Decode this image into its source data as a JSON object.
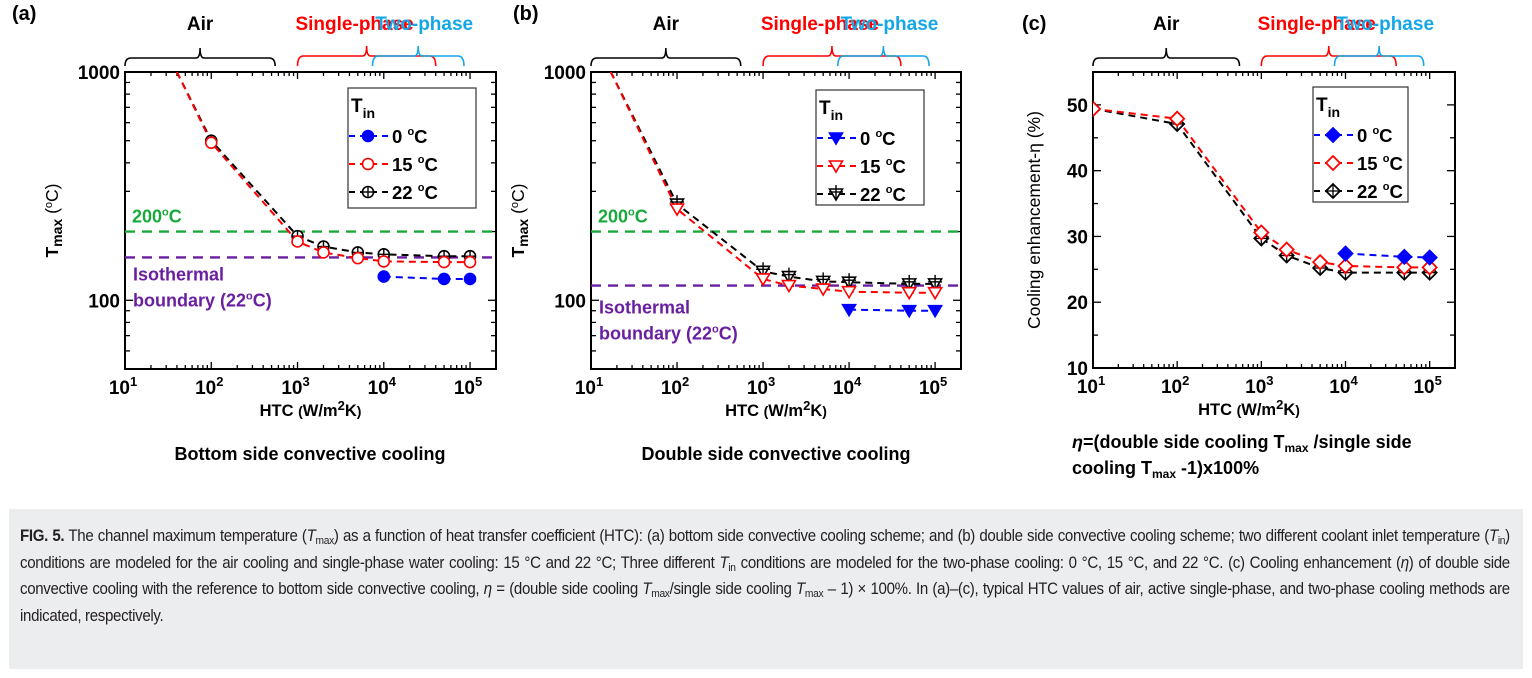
{
  "figure_label": "FIG. 5.",
  "caption": {
    "label": "FIG. 5.",
    "segments": [
      {
        "t": " The channel maximum temperature ("
      },
      {
        "t": "T",
        "i": true
      },
      {
        "t": "max",
        "sub": true
      },
      {
        "t": ") as a function of heat transfer coefficient (HTC): (a) bottom side convective cooling scheme; and (b) double side convective cooling scheme; two different coolant inlet temperature ("
      },
      {
        "t": "T",
        "i": true
      },
      {
        "t": "in",
        "sub": true
      },
      {
        "t": ") conditions are modeled for the air cooling and single-phase water cooling: 15 °C and 22 °C; Three different "
      },
      {
        "t": "T",
        "i": true
      },
      {
        "t": "in",
        "sub": true
      },
      {
        "t": " conditions are modeled for the two-phase cooling: 0 °C, 15 °C, and 22 °C. (c) Cooling enhancement ("
      },
      {
        "t": "η",
        "i": true
      },
      {
        "t": ") of double side convective cooling with the reference to bottom side convective cooling, "
      },
      {
        "t": "η",
        "i": true
      },
      {
        "t": " = (double side cooling "
      },
      {
        "t": "T",
        "i": true
      },
      {
        "t": "max",
        "sub": true
      },
      {
        "t": "/single side cooling "
      },
      {
        "t": "T",
        "i": true
      },
      {
        "t": "max",
        "sub": true
      },
      {
        "t": " – 1) × 100%. In (a)–(c), typical HTC values of air, active single-phase, and two-phase cooling methods are indicated, respectively."
      }
    ]
  },
  "colors": {
    "t0": "#0000ff",
    "t15": "#ff0000",
    "t22": "#000000",
    "limit200": "#1aaa3c",
    "isothermal": "#6a1fa0",
    "air": "#000000",
    "single_phase": "#ff0000",
    "two_phase": "#13a7e8"
  },
  "chart_data": [
    {
      "panel": "(a)",
      "type": "line",
      "subtitle": "Bottom side convective cooling",
      "xlabel": "HTC (W/m²K)",
      "ylabel": "Tmax (°C)",
      "xscale": "log",
      "yscale": "log",
      "xlim": [
        10,
        200000
      ],
      "ylim": [
        50,
        1000
      ],
      "xticks": [
        {
          "v": 10,
          "base": "10",
          "exp": "1"
        },
        {
          "v": 100,
          "base": "10",
          "exp": "2"
        },
        {
          "v": 1000,
          "base": "10",
          "exp": "3"
        },
        {
          "v": 10000,
          "base": "10",
          "exp": "4"
        },
        {
          "v": 100000,
          "base": "10",
          "exp": "5"
        }
      ],
      "yticks": [
        {
          "v": 100,
          "label": "100"
        },
        {
          "v": 1000,
          "label": "1000"
        }
      ],
      "legend": {
        "title": "T",
        "title_sub": "in",
        "placement": "top-right"
      },
      "series": [
        {
          "name": "0 °C",
          "key": "t0",
          "marker": "circle-filled",
          "x": [
            10000,
            50000,
            100000
          ],
          "y": [
            127,
            124,
            124
          ]
        },
        {
          "name": "15 °C",
          "key": "t15",
          "marker": "circle-open",
          "x": [
            40,
            100,
            1000,
            2000,
            5000,
            10000,
            50000,
            100000
          ],
          "y": [
            1000,
            490,
            181,
            162,
            153,
            148,
            147,
            147
          ]
        },
        {
          "name": "22 °C",
          "key": "t22",
          "marker": "circle-plus",
          "x": [
            40,
            100,
            1000,
            2000,
            5000,
            10000,
            50000,
            100000
          ],
          "y": [
            1000,
            500,
            191,
            172,
            162,
            159,
            156,
            156
          ]
        }
      ],
      "hlines": [
        {
          "label": "200ºC",
          "value": 200,
          "key": "limit200"
        },
        {
          "label": "Isothermal",
          "label2": "boundary (22ºC)",
          "value": 154,
          "key": "isothermal"
        }
      ],
      "ranges": [
        {
          "label": "Air",
          "key": "air",
          "from": 10,
          "to": 550
        },
        {
          "label": "Single-phase",
          "key": "single_phase",
          "from": 1000,
          "to": 40000
        },
        {
          "label": "Two-phase",
          "key": "two_phase",
          "from": 7400,
          "to": 85000
        }
      ]
    },
    {
      "panel": "(b)",
      "type": "line",
      "subtitle": "Double side convective cooling",
      "xlabel": "HTC (W/m²K)",
      "ylabel": "Tmax (°C)",
      "xscale": "log",
      "yscale": "log",
      "xlim": [
        10,
        200000
      ],
      "ylim": [
        50,
        1000
      ],
      "xticks": [
        {
          "v": 10,
          "base": "10",
          "exp": "1"
        },
        {
          "v": 100,
          "base": "10",
          "exp": "2"
        },
        {
          "v": 1000,
          "base": "10",
          "exp": "3"
        },
        {
          "v": 10000,
          "base": "10",
          "exp": "4"
        },
        {
          "v": 100000,
          "base": "10",
          "exp": "5"
        }
      ],
      "yticks": [
        {
          "v": 100,
          "label": "100"
        },
        {
          "v": 1000,
          "label": "1000"
        }
      ],
      "legend": {
        "title": "T",
        "title_sub": "in",
        "placement": "top-right"
      },
      "series": [
        {
          "name": "0 °C",
          "key": "t0",
          "marker": "tri-down-filled",
          "x": [
            10000,
            50000,
            100000
          ],
          "y": [
            91,
            90,
            90
          ]
        },
        {
          "name": "15 °C",
          "key": "t15",
          "marker": "tri-down-open",
          "x": [
            17,
            100,
            1000,
            2000,
            5000,
            10000,
            50000,
            100000
          ],
          "y": [
            1000,
            251,
            124,
            116,
            112,
            109,
            108,
            108
          ]
        },
        {
          "name": "22 °C",
          "key": "t22",
          "marker": "tri-down-plus",
          "x": [
            17,
            100,
            1000,
            2000,
            5000,
            10000,
            50000,
            100000
          ],
          "y": [
            1000,
            264,
            134,
            127,
            121,
            120,
            118,
            118
          ]
        }
      ],
      "hlines": [
        {
          "label": "200ºC",
          "value": 200,
          "key": "limit200"
        },
        {
          "label": "Isothermal",
          "label2": "boundary (22ºC)",
          "value": 116,
          "key": "isothermal"
        }
      ],
      "ranges": [
        {
          "label": "Air",
          "key": "air",
          "from": 10,
          "to": 550
        },
        {
          "label": "Single-phase",
          "key": "single_phase",
          "from": 1000,
          "to": 40000
        },
        {
          "label": "Two-phase",
          "key": "two_phase",
          "from": 7400,
          "to": 85000
        }
      ]
    },
    {
      "panel": "(c)",
      "type": "line",
      "subtitle": "η=(double side cooling Tmax /single side cooling Tmax -1)x100%",
      "subtitle_parts": {
        "eta": "η",
        "p1": "=(double side cooling T",
        "sub1": "max",
        "p2": " /single side",
        "p3": "cooling T",
        "sub2": "max",
        "p4": " -1)x100%"
      },
      "xlabel": "HTC (W/m²K)",
      "ylabel": "Cooling enhancement-η (%)",
      "xscale": "log",
      "yscale": "linear",
      "xlim": [
        10,
        200000
      ],
      "ylim": [
        10,
        55
      ],
      "xticks": [
        {
          "v": 10,
          "base": "10",
          "exp": "1"
        },
        {
          "v": 100,
          "base": "10",
          "exp": "2"
        },
        {
          "v": 1000,
          "base": "10",
          "exp": "3"
        },
        {
          "v": 10000,
          "base": "10",
          "exp": "4"
        },
        {
          "v": 100000,
          "base": "10",
          "exp": "5"
        }
      ],
      "yticks": [
        {
          "v": 10,
          "label": "10"
        },
        {
          "v": 20,
          "label": "20"
        },
        {
          "v": 30,
          "label": "30"
        },
        {
          "v": 40,
          "label": "40"
        },
        {
          "v": 50,
          "label": "50"
        }
      ],
      "legend": {
        "title": "T",
        "title_sub": "in",
        "placement": "top-right"
      },
      "series": [
        {
          "name": "0 °C",
          "key": "t0",
          "marker": "diamond-filled",
          "x": [
            10000,
            50000,
            100000
          ],
          "y": [
            27.4,
            26.9,
            26.8
          ]
        },
        {
          "name": "15 °C",
          "key": "t15",
          "marker": "diamond-open",
          "x": [
            10,
            100,
            1000,
            2000,
            5000,
            10000,
            50000,
            100000
          ],
          "y": [
            49.4,
            47.9,
            30.6,
            28.0,
            26.1,
            25.5,
            25.3,
            25.3
          ]
        },
        {
          "name": "22 °C",
          "key": "t22",
          "marker": "diamond-plus",
          "x": [
            10,
            100,
            1000,
            2000,
            5000,
            10000,
            50000,
            100000
          ],
          "y": [
            49.4,
            47.1,
            29.7,
            27.1,
            25.2,
            24.5,
            24.5,
            24.5
          ]
        }
      ],
      "hlines": [],
      "ranges": [
        {
          "label": "Air",
          "key": "air",
          "from": 10,
          "to": 550
        },
        {
          "label": "Single-phase",
          "key": "single_phase",
          "from": 1000,
          "to": 40000
        },
        {
          "label": "Two-phase",
          "key": "two_phase",
          "from": 7400,
          "to": 85000
        }
      ]
    }
  ]
}
